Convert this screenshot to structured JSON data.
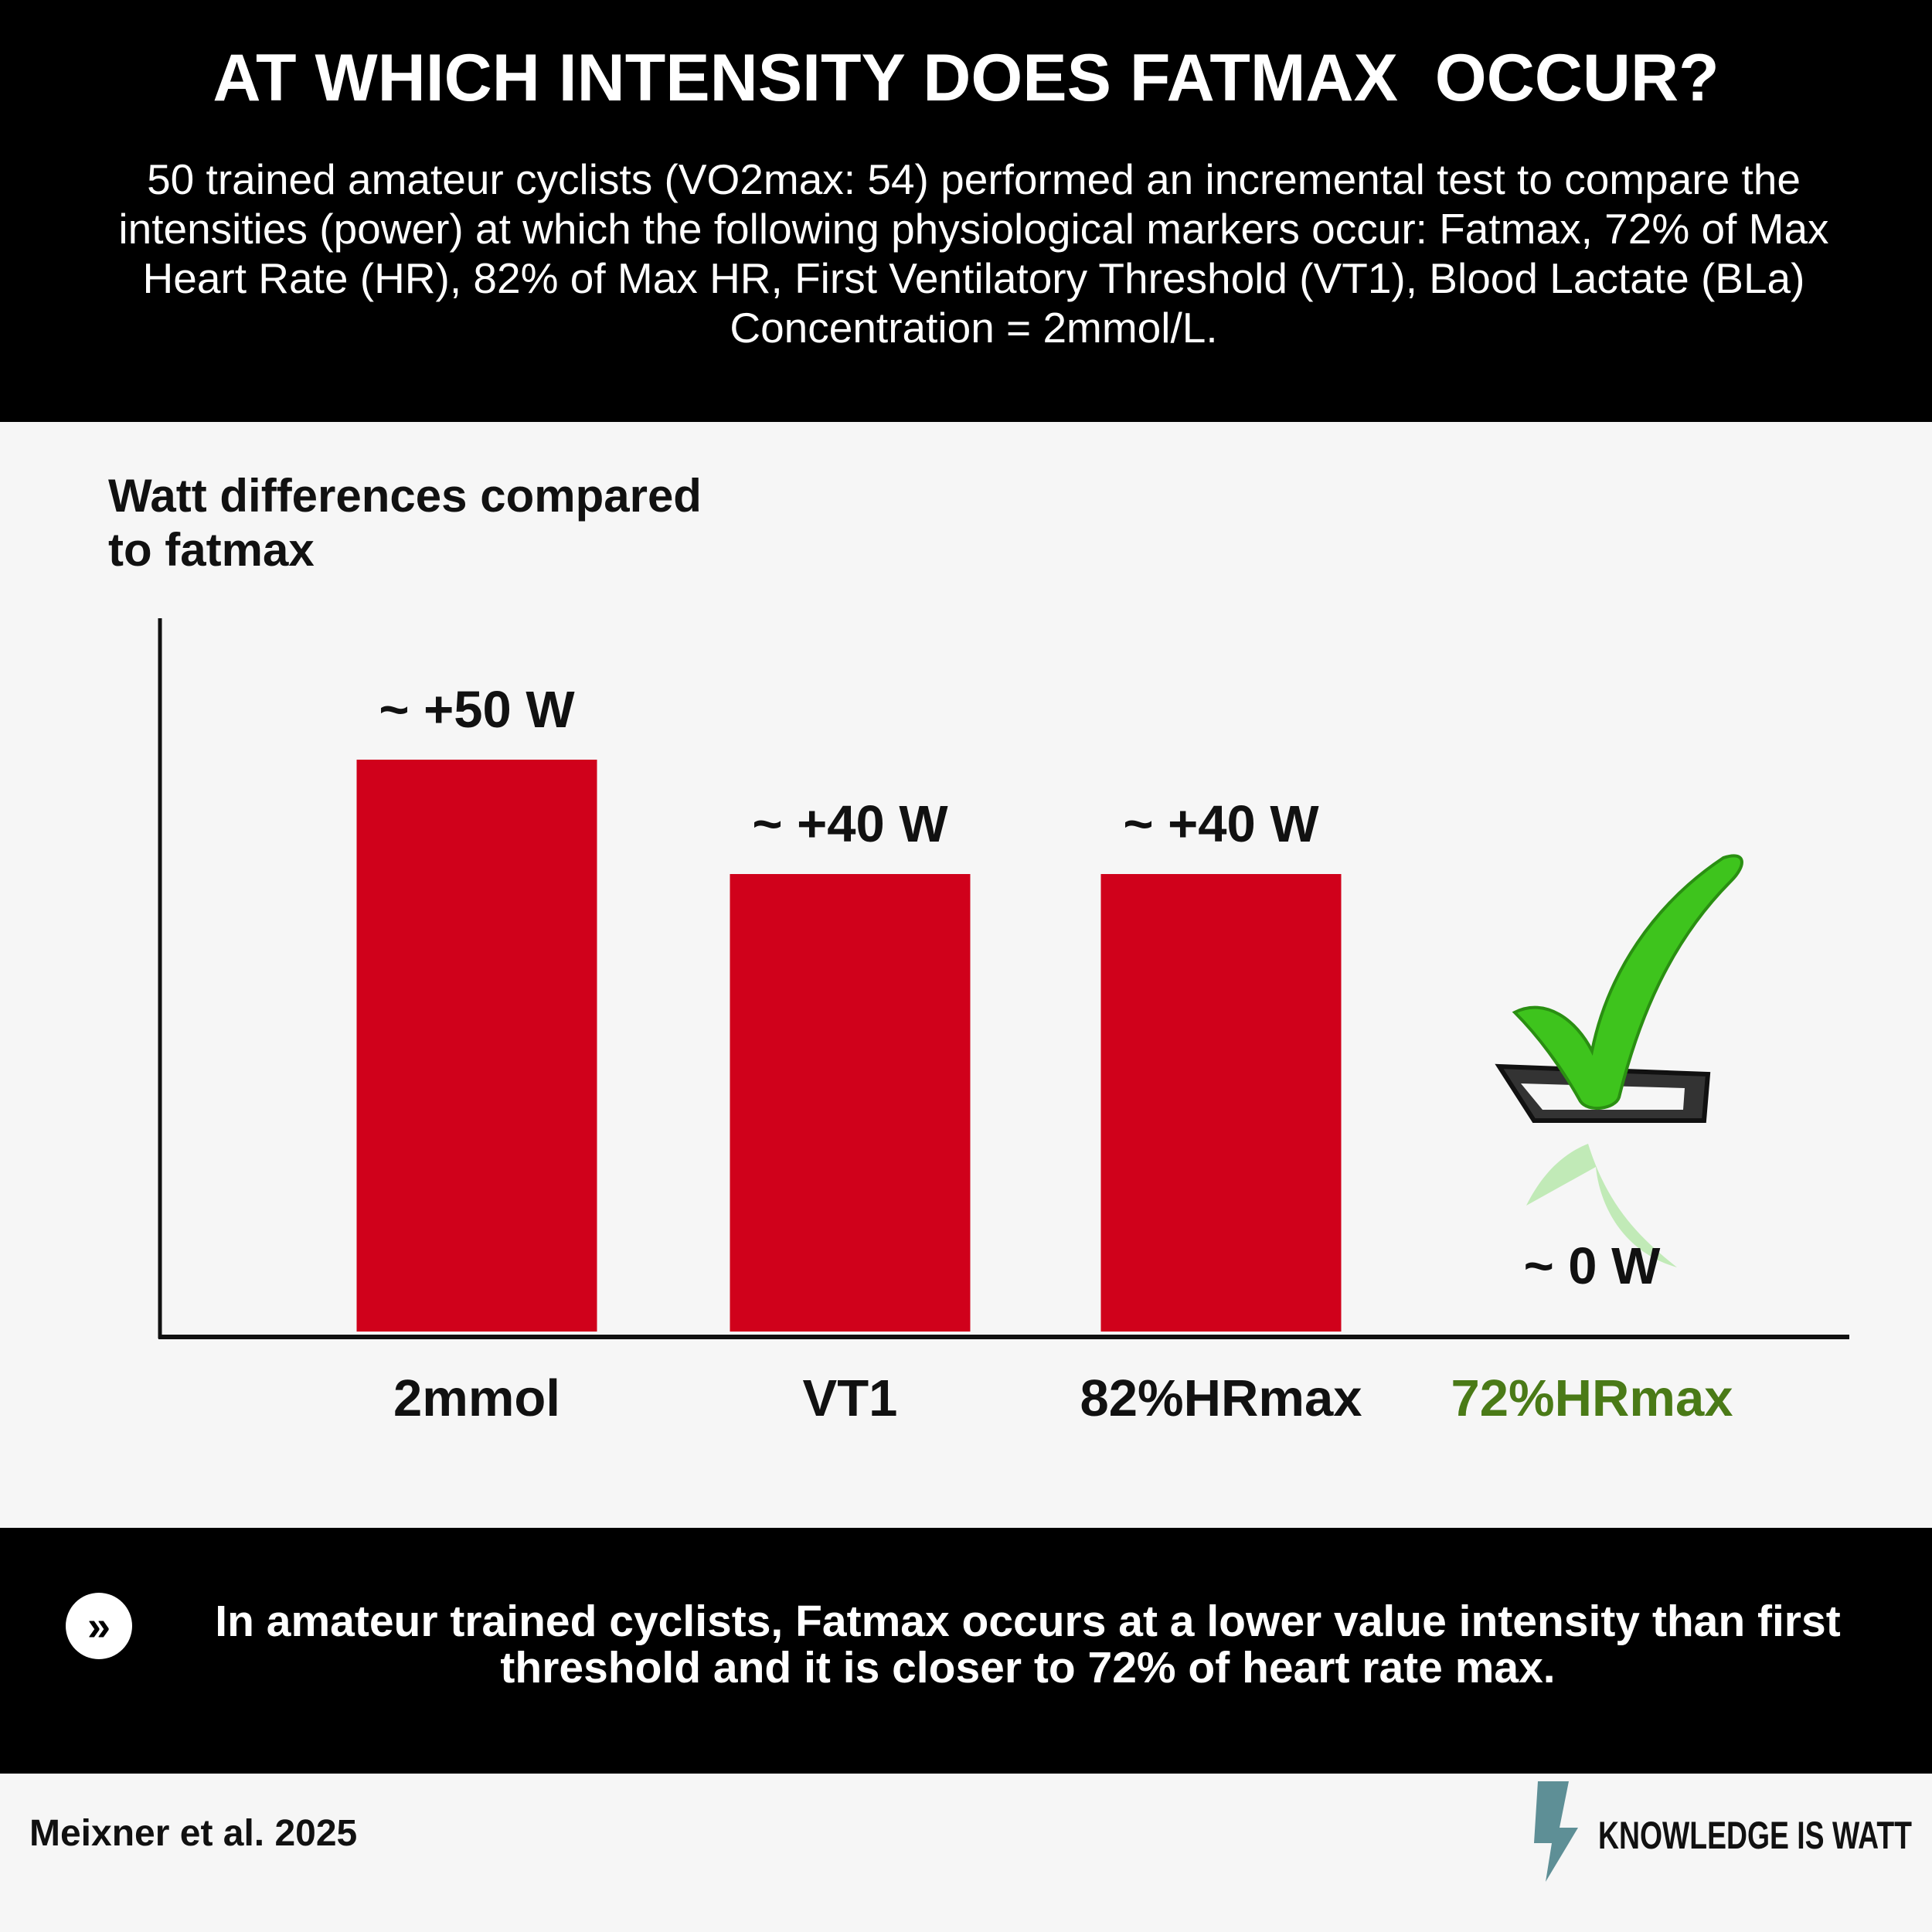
{
  "header": {
    "title": "AT WHICH INTENSITY DOES FATMAX  OCCUR?",
    "subtitle": "50 trained amateur cyclists (VO2max: 54) performed an incremental test to compare the intensities (power) at which the following physiological markers occur: Fatmax, 72% of Max Heart Rate (HR), 82% of Max HR, First Ventilatory Threshold (VT1), Blood Lactate (BLa) Concentration = 2mmol/L."
  },
  "chart_data": {
    "type": "bar",
    "ylabel": "Watt differences compared to fatmax",
    "categories": [
      "2mmol",
      "VT1",
      "82%HRmax",
      "72%HRmax"
    ],
    "values": [
      50,
      40,
      40,
      0
    ],
    "value_labels": [
      "~ +50 W",
      "~ +40 W",
      "~ +40 W",
      "~ 0 W"
    ],
    "color": "#d0011b",
    "label_colors": [
      "#111111",
      "#111111",
      "#111111",
      "#4a7a17"
    ]
  },
  "footer": {
    "conclusion": "In amateur trained cyclists, Fatmax occurs at a lower value intensity than first threshold and it is closer to 72% of heart rate max.",
    "citation": "Meixner  et al. 2025",
    "brand": "KNOWLEDGE IS WATT"
  }
}
